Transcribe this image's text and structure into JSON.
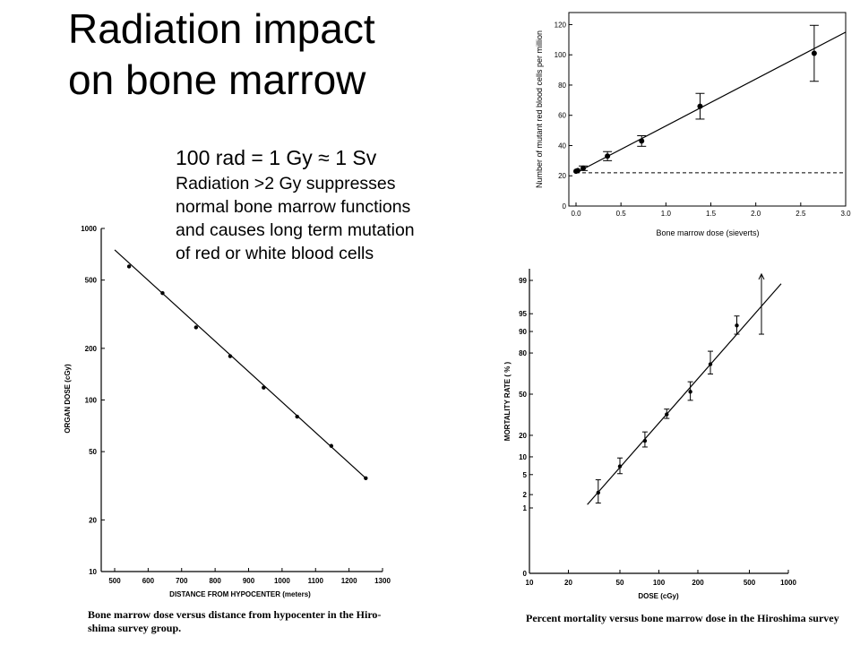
{
  "slide": {
    "title_line1": "Radiation impact",
    "title_line2": "on bone marrow",
    "equation": "100 rad = 1 Gy ≈ 1 Sv",
    "paragraph_lines": [
      "Radiation >2 Gy suppresses",
      "normal bone marrow functions",
      "and causes long term mutation",
      "of red or white blood cells"
    ]
  },
  "chart_data": [
    {
      "id": "mutant",
      "type": "scatter",
      "xlabel": "Bone marrow dose (sieverts)",
      "ylabel": "Number of mutant red blood cells per million",
      "xlim": [
        0,
        3.0
      ],
      "ylim": [
        0,
        125
      ],
      "xticks": [
        "0.0",
        "0.5",
        "1.0",
        "1.5",
        "2.0",
        "2.5",
        "3.0"
      ],
      "yticks": [
        "0",
        "20",
        "40",
        "60",
        "80",
        "100",
        "120"
      ],
      "points": [
        {
          "x": 0.0,
          "y": 23,
          "err": 0
        },
        {
          "x": 0.02,
          "y": 23.5,
          "err": 0
        },
        {
          "x": 0.08,
          "y": 25,
          "err": 1.5
        },
        {
          "x": 0.35,
          "y": 33,
          "err": 3
        },
        {
          "x": 0.73,
          "y": 43,
          "err": 3.5
        },
        {
          "x": 1.38,
          "y": 66,
          "err": 8.5
        },
        {
          "x": 2.65,
          "y": 101,
          "err": 18.5
        }
      ],
      "fit": {
        "x": [
          0,
          3.0
        ],
        "y": [
          22,
          115
        ]
      },
      "baseline": 22
    },
    {
      "id": "organ",
      "type": "scatter",
      "xlabel": "DISTANCE FROM HYPOCENTER (meters)",
      "ylabel": "ORGAN DOSE (cGy)",
      "caption_lines": [
        "Bone marrow dose versus distance from hypocenter in the Hiro-",
        "shima survey group."
      ],
      "xlim": [
        500,
        1300
      ],
      "ylim": [
        10,
        1000
      ],
      "yscale": "log",
      "xticks": [
        "500",
        "600",
        "700",
        "800",
        "900",
        "1000",
        "1100",
        "1200",
        "1300"
      ],
      "yticks": [
        "10",
        "20",
        "50",
        "100",
        "200",
        "500",
        "1000"
      ],
      "points": [
        {
          "x": 543,
          "y": 600
        },
        {
          "x": 643,
          "y": 420
        },
        {
          "x": 743,
          "y": 265
        },
        {
          "x": 845,
          "y": 180
        },
        {
          "x": 945,
          "y": 118
        },
        {
          "x": 1045,
          "y": 80
        },
        {
          "x": 1147,
          "y": 54
        },
        {
          "x": 1250,
          "y": 35
        }
      ],
      "fit": {
        "x": [
          500,
          1250
        ],
        "y": [
          750,
          35
        ]
      }
    },
    {
      "id": "mortality",
      "type": "scatter",
      "xlabel": "DOSE (cGy)",
      "ylabel": "MORTALITY RATE ( % )",
      "caption": "Percent mortality versus bone marrow dose in the Hiroshima survey",
      "xlim": [
        10,
        1000
      ],
      "xscale": "log",
      "ylim": [
        0,
        99
      ],
      "yscale": "probability",
      "xticks": [
        "10",
        "20",
        "50",
        "100",
        "200",
        "500",
        "1000"
      ],
      "yticks": [
        "0",
        "1",
        "2",
        "5",
        "10",
        "20",
        "50",
        "80",
        "90",
        "95",
        "99"
      ],
      "points": [
        {
          "x": 34,
          "y": 2.2,
          "lo": 1.3,
          "hi": 4
        },
        {
          "x": 50,
          "y": 7,
          "lo": 5.2,
          "hi": 9.6
        },
        {
          "x": 78,
          "y": 17,
          "lo": 14,
          "hi": 22
        },
        {
          "x": 115,
          "y": 34,
          "lo": 31,
          "hi": 38
        },
        {
          "x": 175,
          "y": 52,
          "lo": 45,
          "hi": 60
        },
        {
          "x": 250,
          "y": 73,
          "lo": 66,
          "hi": 81
        },
        {
          "x": 400,
          "y": 92,
          "lo": 89,
          "hi": 94.5
        },
        {
          "x": 620,
          "y": 97,
          "lo": 89,
          "hi": 99.3
        }
      ],
      "fit": {
        "x": [
          28,
          880
        ],
        "y": [
          1.2,
          98.8
        ]
      }
    }
  ]
}
